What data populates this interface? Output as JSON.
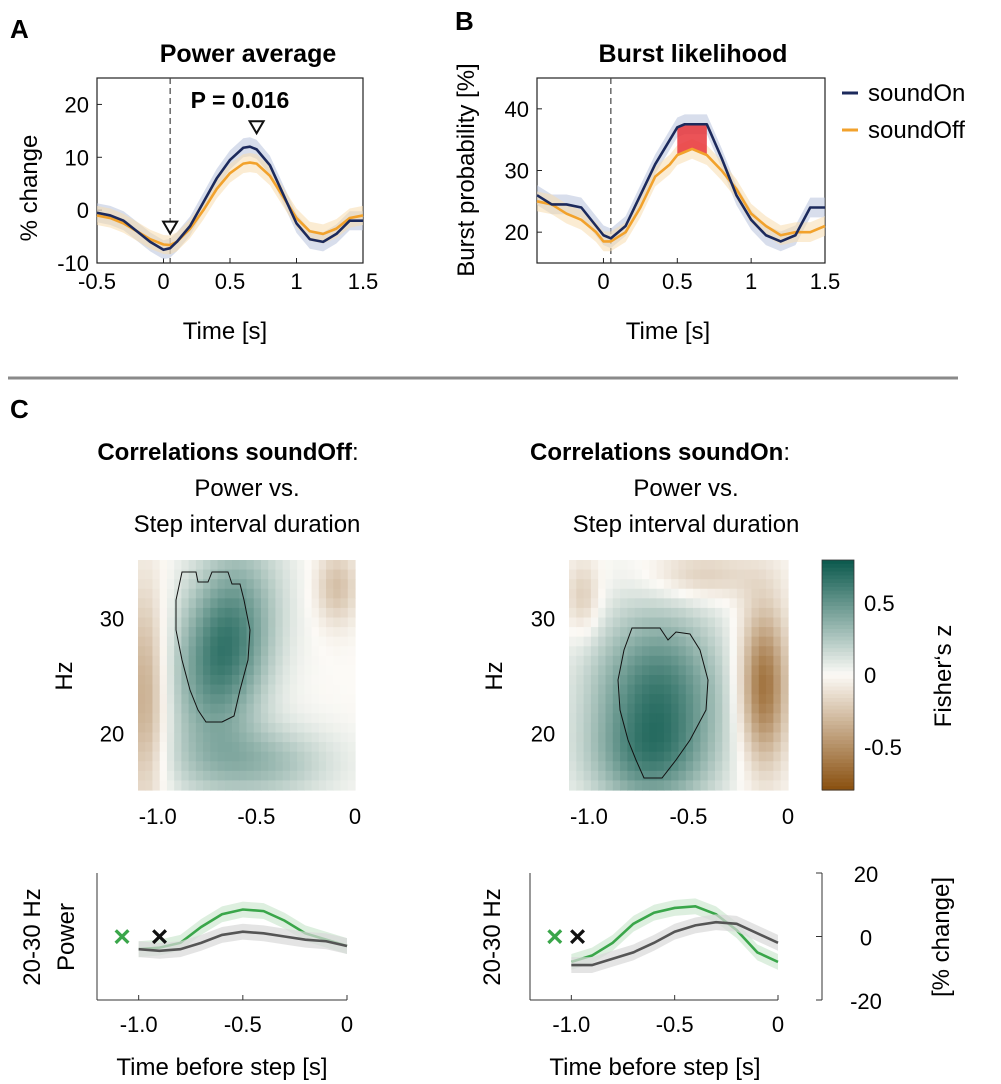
{
  "panels": {
    "a": "A",
    "b": "B",
    "c": "C"
  },
  "colors": {
    "soundOn": "#1c2a5c",
    "soundOff": "#f2a22c",
    "soundOn_band": "#b8c2dd",
    "soundOff_band": "#f7dcae",
    "significant": "#e8353a",
    "green": "#3aa64a",
    "gray": "#555555",
    "divider": "#8a8a8a",
    "cmap_pos": "#0e5b4f",
    "cmap_neg": "#8b5212"
  },
  "legend": {
    "soundOn": "soundOn",
    "soundOff": "soundOff"
  },
  "headings": {
    "c_left_bold": "Correlations soundOff",
    "c_left_colon": ":",
    "c_left_l2": "Power vs.",
    "c_left_l3": "Step interval duration",
    "c_right_bold": "Correlations soundOn",
    "c_right_colon": ":",
    "c_right_l2": "Power vs.",
    "c_right_l3": "Step interval duration"
  },
  "chart_data": [
    {
      "id": "A",
      "type": "line",
      "title": "Power average",
      "annotation": "P = 0.016",
      "xlabel": "Time [s]",
      "ylabel": "% change",
      "xlim": [
        -0.5,
        1.5
      ],
      "ylim": [
        -10,
        25
      ],
      "xticks": [
        "-0.5",
        "0",
        "0.5",
        "1",
        "1.5"
      ],
      "yticks": [
        "-10",
        "0",
        "10",
        "20"
      ],
      "x": [
        -0.5,
        -0.4,
        -0.3,
        -0.2,
        -0.1,
        0.0,
        0.05,
        0.1,
        0.2,
        0.3,
        0.4,
        0.5,
        0.6,
        0.65,
        0.7,
        0.8,
        0.9,
        1.0,
        1.1,
        1.2,
        1.3,
        1.4,
        1.5
      ],
      "series": [
        {
          "name": "soundOn",
          "values": [
            -0.5,
            -1,
            -2,
            -4,
            -6,
            -7.5,
            -7.2,
            -6,
            -3,
            1.5,
            6,
            9.5,
            11.8,
            12,
            11.5,
            8.5,
            3,
            -2.5,
            -5.5,
            -6,
            -4.5,
            -2,
            -2
          ]
        },
        {
          "name": "soundOff",
          "values": [
            -1,
            -1.5,
            -2.5,
            -4,
            -5.5,
            -6.5,
            -6.6,
            -6,
            -3.5,
            0,
            4,
            7,
            8.8,
            9,
            8.8,
            6.5,
            2.5,
            -1.5,
            -4,
            -4.5,
            -3.5,
            -1.5,
            -1
          ]
        }
      ],
      "markers": [
        {
          "x": 0.05,
          "y": -3.5
        },
        {
          "x": 0.7,
          "y": 15.5
        }
      ]
    },
    {
      "id": "B",
      "type": "line",
      "title": "Burst likelihood",
      "xlabel": "Time [s]",
      "ylabel": "Burst probability [%]",
      "xlim": [
        -0.45,
        1.5
      ],
      "ylim": [
        15,
        45
      ],
      "xticks": [
        "0",
        "0.5",
        "1",
        "1.5"
      ],
      "yticks": [
        "20",
        "30",
        "40"
      ],
      "x": [
        -0.45,
        -0.35,
        -0.25,
        -0.15,
        -0.05,
        0.0,
        0.05,
        0.15,
        0.25,
        0.35,
        0.45,
        0.5,
        0.55,
        0.6,
        0.65,
        0.7,
        0.8,
        0.9,
        1.0,
        1.1,
        1.2,
        1.3,
        1.4,
        1.5
      ],
      "series": [
        {
          "name": "soundOn",
          "values": [
            26,
            24.5,
            24.5,
            24,
            21,
            19.5,
            19,
            21,
            26,
            31,
            35,
            37,
            37.5,
            37.5,
            37.5,
            37.5,
            32,
            26,
            22,
            19.5,
            18.5,
            19.5,
            24,
            24
          ]
        },
        {
          "name": "soundOff",
          "values": [
            25,
            24.5,
            23,
            22,
            20,
            18.5,
            18.5,
            20,
            24,
            29,
            31,
            32.5,
            33,
            33.5,
            33,
            32.5,
            30,
            27,
            23,
            21,
            19.5,
            20,
            20,
            21
          ]
        }
      ],
      "significant_range": [
        0.49,
        0.71
      ]
    },
    {
      "id": "C-left",
      "type": "heatmap",
      "xlabel": "",
      "ylabel": "Hz",
      "xlim": [
        -1.1,
        0
      ],
      "ylim": [
        15,
        35
      ],
      "xticks": [
        "-1.0",
        "-0.5",
        "0"
      ],
      "yticks": [
        "20",
        "30"
      ]
    },
    {
      "id": "C-right",
      "type": "heatmap",
      "xlabel": "",
      "ylabel": "Hz",
      "xlim": [
        -1.1,
        0
      ],
      "ylim": [
        15,
        35
      ],
      "xticks": [
        "-1.0",
        "-0.5",
        "0"
      ],
      "yticks": [
        "20",
        "30"
      ]
    },
    {
      "id": "colorbar",
      "type": "heatmap",
      "label": "Fisher‘s z",
      "range": [
        -0.8,
        0.8
      ],
      "ticks": [
        "0.5",
        "0",
        "-0.5"
      ]
    },
    {
      "id": "C-bottom-left",
      "type": "line",
      "xlabel": "Time before step [s]",
      "ylabel_l1": "20-30 Hz",
      "ylabel_l2": "Power",
      "xlim": [
        -1.2,
        0
      ],
      "ylim": [
        -20,
        20
      ],
      "xticks": [
        "-1.0",
        "-0.5",
        "0"
      ],
      "x": [
        -1.0,
        -0.9,
        -0.8,
        -0.7,
        -0.6,
        -0.5,
        -0.4,
        -0.3,
        -0.2,
        -0.1,
        0.0
      ],
      "series": [
        {
          "values": [
            -4,
            -3.5,
            -2,
            3,
            7,
            8.5,
            8,
            5,
            1,
            -1,
            -3
          ]
        },
        {
          "values": [
            -4,
            -4.5,
            -4,
            -2,
            0.5,
            1.5,
            1,
            0,
            -1,
            -1.5,
            -3
          ]
        }
      ],
      "markers": [
        {
          "label": "×",
          "x": -1.08,
          "y": 0
        },
        {
          "label": "×",
          "x": -0.9,
          "y": 0
        }
      ]
    },
    {
      "id": "C-bottom-right",
      "type": "line",
      "xlabel": "Time before step [s]",
      "ylabel_l1": "20-30 Hz",
      "ylabel_right": "[% change]",
      "xlim": [
        -1.2,
        0
      ],
      "ylim": [
        -20,
        20
      ],
      "xticks": [
        "-1.0",
        "-0.5",
        "0"
      ],
      "yticks": [
        "-20",
        "0",
        "20"
      ],
      "x": [
        -1.0,
        -0.9,
        -0.8,
        -0.7,
        -0.6,
        -0.5,
        -0.4,
        -0.3,
        -0.2,
        -0.1,
        0.0
      ],
      "series": [
        {
          "values": [
            -8,
            -6,
            -2,
            4,
            7.5,
            9,
            9.5,
            7,
            2,
            -5,
            -8
          ]
        },
        {
          "values": [
            -9,
            -9,
            -7,
            -5,
            -2,
            1.5,
            3.5,
            4.5,
            4,
            1,
            -2
          ]
        }
      ],
      "markers": [
        {
          "label": "×",
          "x": -1.08,
          "y": 0
        },
        {
          "label": "×",
          "x": -0.97,
          "y": 0
        }
      ]
    }
  ]
}
